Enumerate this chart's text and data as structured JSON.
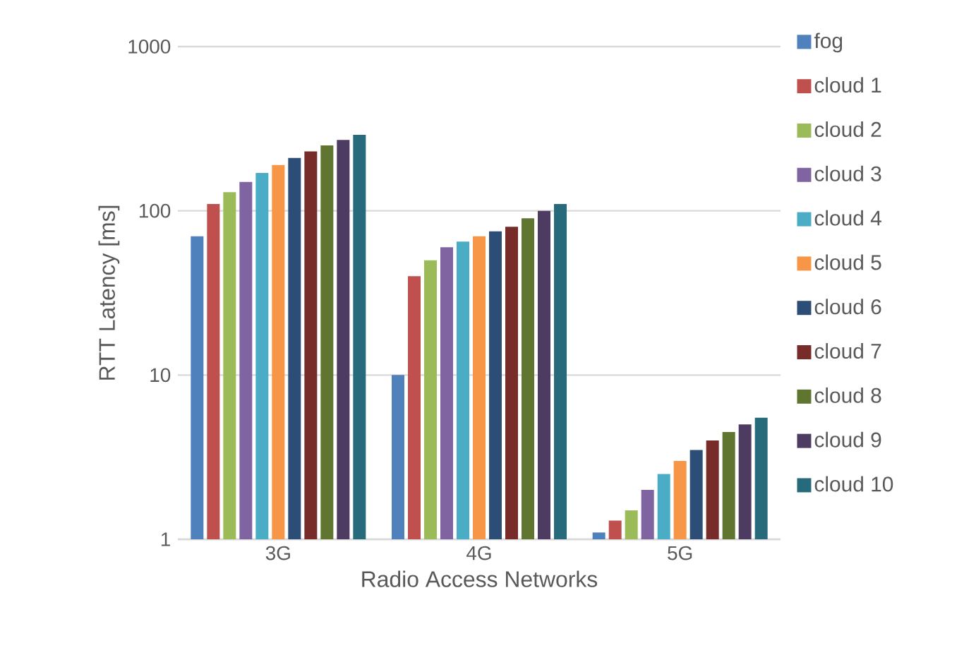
{
  "chart_data": {
    "type": "bar",
    "xlabel": "Radio Access Networks",
    "ylabel": "RTT Latency [ms]",
    "categories": [
      "3G",
      "4G",
      "5G"
    ],
    "log": "y",
    "ylim": [
      1,
      1000
    ],
    "yticks": [
      1,
      10,
      100,
      1000
    ],
    "grid": "y",
    "legend": "right",
    "series": [
      {
        "name": "fog",
        "color": "#4f81bd",
        "values": [
          70,
          10,
          1.1
        ]
      },
      {
        "name": "cloud 1",
        "color": "#c0504d",
        "values": [
          110,
          40,
          1.3
        ]
      },
      {
        "name": "cloud 2",
        "color": "#9bbb59",
        "values": [
          130,
          50,
          1.5
        ]
      },
      {
        "name": "cloud 3",
        "color": "#8064a2",
        "values": [
          150,
          60,
          2
        ]
      },
      {
        "name": "cloud 4",
        "color": "#4bacc6",
        "values": [
          170,
          65,
          2.5
        ]
      },
      {
        "name": "cloud 5",
        "color": "#f79646",
        "values": [
          190,
          70,
          3
        ]
      },
      {
        "name": "cloud 6",
        "color": "#2c4d75",
        "values": [
          210,
          75,
          3.5
        ]
      },
      {
        "name": "cloud 7",
        "color": "#772c2a",
        "values": [
          230,
          80,
          4
        ]
      },
      {
        "name": "cloud 8",
        "color": "#5f7530",
        "values": [
          250,
          90,
          4.5
        ]
      },
      {
        "name": "cloud 9",
        "color": "#4d3b62",
        "values": [
          270,
          100,
          5
        ]
      },
      {
        "name": "cloud 10",
        "color": "#276a7c",
        "values": [
          290,
          110,
          5.5
        ]
      }
    ]
  }
}
